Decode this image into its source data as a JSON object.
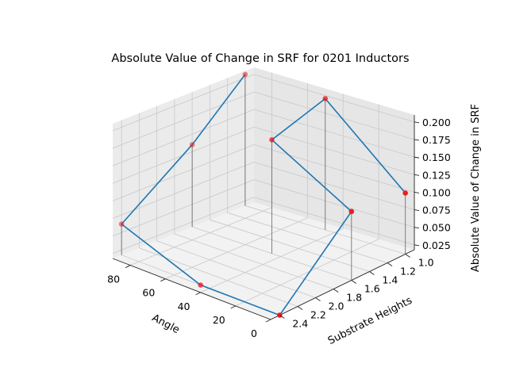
{
  "chart_data": {
    "type": "scatter",
    "projection": "3d",
    "title": "Absolute Value of Change in SRF for 0201 Inductors",
    "xlabel": "Angle",
    "ylabel": "Substrate Heights",
    "zlabel": "Absolute Value of Change in SRF",
    "x_ticks": [
      "0",
      "20",
      "40",
      "60",
      "80"
    ],
    "y_ticks": [
      "1.0",
      "1.2",
      "1.4",
      "1.6",
      "1.8",
      "2.0",
      "2.2",
      "2.4"
    ],
    "z_ticks": [
      "0.025",
      "0.050",
      "0.075",
      "0.100",
      "0.125",
      "0.150",
      "0.175",
      "0.200"
    ],
    "xlim": [
      0,
      90
    ],
    "ylim": [
      0.9,
      2.5
    ],
    "zlim": [
      0.018,
      0.21
    ],
    "grid": true,
    "line_color": "#1f77b4",
    "marker_color": "#e8201e",
    "stem_color": "#555555",
    "points": [
      {
        "x": 0,
        "y": 1.0,
        "z": 0.105
      },
      {
        "x": 0,
        "y": 1.6,
        "z": 0.116
      },
      {
        "x": 0,
        "y": 2.4,
        "z": 0.018
      },
      {
        "x": 45,
        "y": 1.0,
        "z": 0.205
      },
      {
        "x": 45,
        "y": 1.6,
        "z": 0.18
      },
      {
        "x": 45,
        "y": 2.4,
        "z": 0.018
      },
      {
        "x": 90,
        "y": 1.0,
        "z": 0.205
      },
      {
        "x": 90,
        "y": 1.6,
        "z": 0.135
      },
      {
        "x": 90,
        "y": 2.4,
        "z": 0.062
      }
    ],
    "line_path": [
      6,
      7,
      8,
      5,
      2,
      1,
      4,
      3,
      0
    ]
  }
}
